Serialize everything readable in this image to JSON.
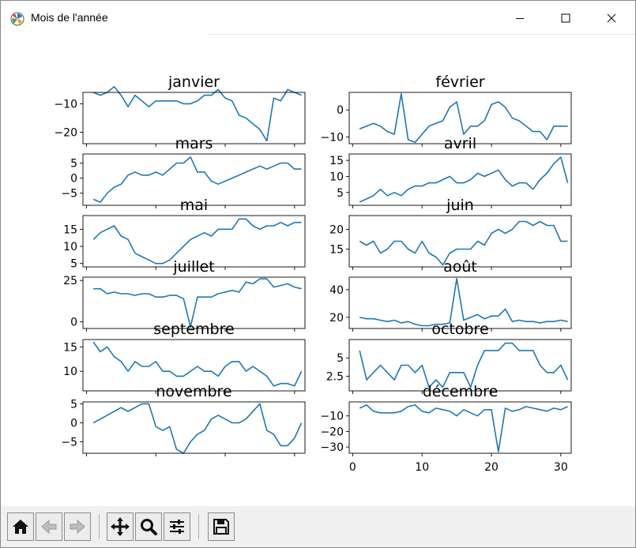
{
  "window": {
    "title": "Mois de l'année",
    "icons": {
      "app": "matplotlib-icon",
      "minimize": "minimize-icon",
      "maximize": "maximize-icon",
      "close": "close-icon"
    }
  },
  "toolbar": {
    "buttons": [
      {
        "name": "home-button",
        "icon": "home-icon"
      },
      {
        "name": "back-button",
        "icon": "arrow-left-icon"
      },
      {
        "name": "forward-button",
        "icon": "arrow-right-icon"
      },
      {
        "name": "pan-button",
        "icon": "move-icon"
      },
      {
        "name": "zoom-button",
        "icon": "magnifier-icon"
      },
      {
        "name": "configure-subplots-button",
        "icon": "sliders-icon"
      },
      {
        "name": "save-button",
        "icon": "floppy-disk-icon"
      }
    ]
  },
  "chart_data": [
    {
      "type": "line",
      "title": "janvier",
      "x_start": 1,
      "xlim": [
        -0.5,
        31.5
      ],
      "ylim": [
        -24,
        -6
      ],
      "yticks": [
        -10,
        -20
      ],
      "xticklabels": false,
      "values": [
        -6,
        -7,
        -6,
        -4,
        -7,
        -11,
        -7,
        -9,
        -11,
        -9,
        -9,
        -9,
        -9,
        -10,
        -10,
        -9,
        -7,
        -7,
        -5,
        -8,
        -9,
        -14,
        -15,
        -17,
        -19,
        -23,
        -8,
        -9,
        -5,
        -6,
        -7
      ]
    },
    {
      "type": "line",
      "title": "février",
      "x_start": 1,
      "xlim": [
        -0.5,
        31.5
      ],
      "ylim": [
        -12.5,
        6.5
      ],
      "yticks": [
        0,
        -10
      ],
      "xticklabels": false,
      "values": [
        -7,
        -6,
        -5,
        -6,
        -8,
        -9,
        6,
        -11,
        -12,
        -9,
        -6,
        -5,
        -4,
        1,
        3,
        -9,
        -6,
        -6,
        -4,
        2,
        3,
        1,
        -3,
        -4,
        -6,
        -8,
        -8,
        -11,
        -6,
        -6,
        -6
      ]
    },
    {
      "type": "line",
      "title": "mars",
      "x_start": 1,
      "xlim": [
        -0.5,
        31.5
      ],
      "ylim": [
        -9,
        8
      ],
      "yticks": [
        5,
        0,
        -5
      ],
      "xticklabels": false,
      "values": [
        -7,
        -8,
        -5,
        -3,
        -2,
        1,
        2,
        1,
        1,
        2,
        1,
        3,
        5,
        5,
        7,
        2,
        2,
        -1,
        -2,
        -1,
        0,
        1,
        2,
        3,
        4,
        3,
        4,
        5,
        5,
        3,
        3
      ]
    },
    {
      "type": "line",
      "title": "avril",
      "x_start": 1,
      "xlim": [
        -0.5,
        31.5
      ],
      "ylim": [
        1,
        17
      ],
      "yticks": [
        15,
        10,
        5
      ],
      "xticklabels": false,
      "values": [
        2,
        3,
        4,
        6,
        4,
        5,
        4,
        6,
        7,
        7,
        8,
        8,
        9,
        10,
        8,
        8,
        9,
        11,
        10,
        11,
        12,
        9,
        7,
        8,
        8,
        6,
        9,
        11,
        14,
        16,
        8
      ]
    },
    {
      "type": "line",
      "title": "mai",
      "x_start": 1,
      "xlim": [
        -0.5,
        31.5
      ],
      "ylim": [
        4,
        19
      ],
      "yticks": [
        15,
        10,
        5
      ],
      "xticklabels": false,
      "values": [
        12,
        14,
        15,
        16,
        13,
        12,
        8,
        7,
        6,
        5,
        5,
        6,
        8,
        10,
        12,
        13,
        14,
        13,
        15,
        15,
        15,
        18,
        18,
        16,
        15,
        16,
        16,
        17,
        16,
        17,
        17
      ]
    },
    {
      "type": "line",
      "title": "juin",
      "x_start": 1,
      "xlim": [
        -0.5,
        31.5
      ],
      "ylim": [
        10.5,
        23.5
      ],
      "yticks": [
        20,
        15
      ],
      "xticklabels": false,
      "values": [
        17,
        16,
        17,
        14,
        15,
        17,
        17,
        15,
        14,
        17,
        14,
        13,
        11,
        14,
        15,
        15,
        15,
        17,
        16,
        19,
        20,
        19,
        20,
        22,
        22,
        21,
        22,
        21,
        21,
        17,
        17
      ]
    },
    {
      "type": "line",
      "title": "juillet",
      "x_start": 1,
      "xlim": [
        -0.5,
        31.5
      ],
      "ylim": [
        -4,
        27
      ],
      "yticks": [
        25,
        0
      ],
      "xticklabels": false,
      "values": [
        20,
        20,
        17,
        18,
        17,
        17,
        16,
        17,
        17,
        15,
        15,
        16,
        16,
        14,
        -3,
        15,
        15,
        15,
        17,
        18,
        19,
        18,
        24,
        23,
        26,
        26,
        21,
        22,
        23,
        21,
        20
      ]
    },
    {
      "type": "line",
      "title": "août",
      "x_start": 1,
      "xlim": [
        -0.5,
        31.5
      ],
      "ylim": [
        12,
        49
      ],
      "yticks": [
        40,
        20
      ],
      "xticklabels": false,
      "values": [
        20,
        19,
        19,
        18,
        17,
        18,
        16,
        17,
        15,
        14,
        14,
        15,
        15,
        16,
        48,
        18,
        20,
        22,
        19,
        21,
        21,
        26,
        17,
        18,
        17,
        17,
        16,
        17,
        17,
        18,
        17
      ]
    },
    {
      "type": "line",
      "title": "septembre",
      "x_start": 1,
      "xlim": [
        -0.5,
        31.5
      ],
      "ylim": [
        6,
        16.5
      ],
      "yticks": [
        15,
        10
      ],
      "xticklabels": false,
      "values": [
        16,
        14,
        15,
        13,
        12,
        10,
        12,
        11,
        11,
        12,
        10,
        10,
        9,
        9,
        10,
        11,
        10,
        10,
        9,
        11,
        12,
        12,
        10,
        11,
        10,
        9,
        7,
        7.5,
        7.5,
        7,
        10
      ]
    },
    {
      "type": "line",
      "title": "octobre",
      "x_start": 1,
      "xlim": [
        -0.5,
        31.5
      ],
      "ylim": [
        0.5,
        7.5
      ],
      "yticks": [
        5.0,
        2.5
      ],
      "xticklabels": false,
      "values": [
        6,
        2,
        3,
        4,
        3,
        2,
        4,
        4,
        3,
        4,
        1,
        2,
        1,
        3,
        3,
        3,
        1,
        4,
        6,
        6,
        6,
        7,
        7,
        6,
        6,
        6,
        4,
        3,
        3,
        4,
        2
      ]
    },
    {
      "type": "line",
      "title": "novembre",
      "x_start": 1,
      "xlim": [
        -0.5,
        31.5
      ],
      "ylim": [
        -8,
        5.5
      ],
      "yticks": [
        5,
        0,
        -5
      ],
      "xticklabels": false,
      "values": [
        0,
        1,
        2,
        3,
        4,
        3,
        4,
        5,
        5,
        -1,
        -2,
        -1,
        -7,
        -8,
        -5,
        -3,
        -2,
        1,
        2,
        1,
        0,
        0,
        1,
        3,
        5,
        -2,
        -3,
        -6,
        -6,
        -4,
        0
      ]
    },
    {
      "type": "line",
      "title": "décembre",
      "x_start": 1,
      "xlim": [
        -0.5,
        31.5
      ],
      "ylim": [
        -34,
        -1
      ],
      "yticks": [
        -10,
        -20,
        -30
      ],
      "xticklabels": true,
      "xticks": [
        0,
        10,
        20,
        30
      ],
      "values": [
        -5,
        -3,
        -7,
        -8,
        -8,
        -8,
        -7,
        -4,
        -3,
        -7,
        -8,
        -5,
        -6,
        -7,
        -10,
        -6,
        -8,
        -10,
        -6,
        -6,
        -33,
        -5,
        -7,
        -6,
        -4,
        -5,
        -6,
        -7,
        -5,
        -6,
        -4
      ]
    }
  ]
}
